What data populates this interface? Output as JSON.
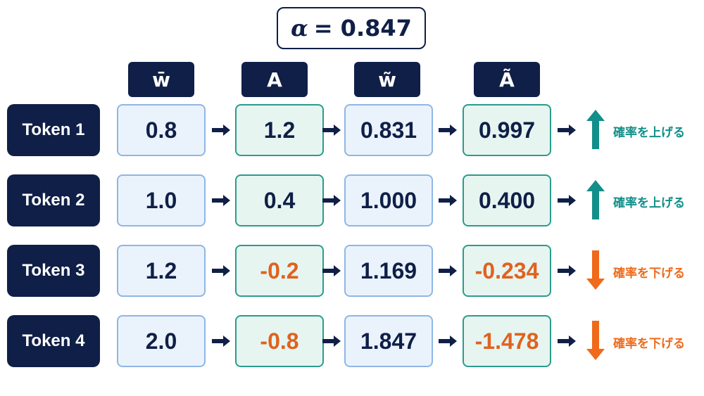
{
  "alpha": {
    "symbol": "α",
    "text": "= 0.847"
  },
  "headers": [
    "w̄",
    "A",
    "w̃",
    "Ã"
  ],
  "rows": [
    {
      "label": "Token 1",
      "w_bar": "0.8",
      "A": "1.2",
      "w_tilde": "0.831",
      "A_tilde": "0.997",
      "direction": "up",
      "note": "確率を上げる"
    },
    {
      "label": "Token 2",
      "w_bar": "1.0",
      "A": "0.4",
      "w_tilde": "1.000",
      "A_tilde": "0.400",
      "direction": "up",
      "note": "確率を上げる"
    },
    {
      "label": "Token 3",
      "w_bar": "1.2",
      "A": "-0.2",
      "w_tilde": "1.169",
      "A_tilde": "-0.234",
      "direction": "down",
      "note": "確率を下げる"
    },
    {
      "label": "Token 4",
      "w_bar": "2.0",
      "A": "-0.8",
      "w_tilde": "1.847",
      "A_tilde": "-1.478",
      "direction": "down",
      "note": "確率を下げる"
    }
  ],
  "colors": {
    "navy": "#0f1f47",
    "teal": "#128f8a",
    "orange": "#ef6a1a"
  }
}
